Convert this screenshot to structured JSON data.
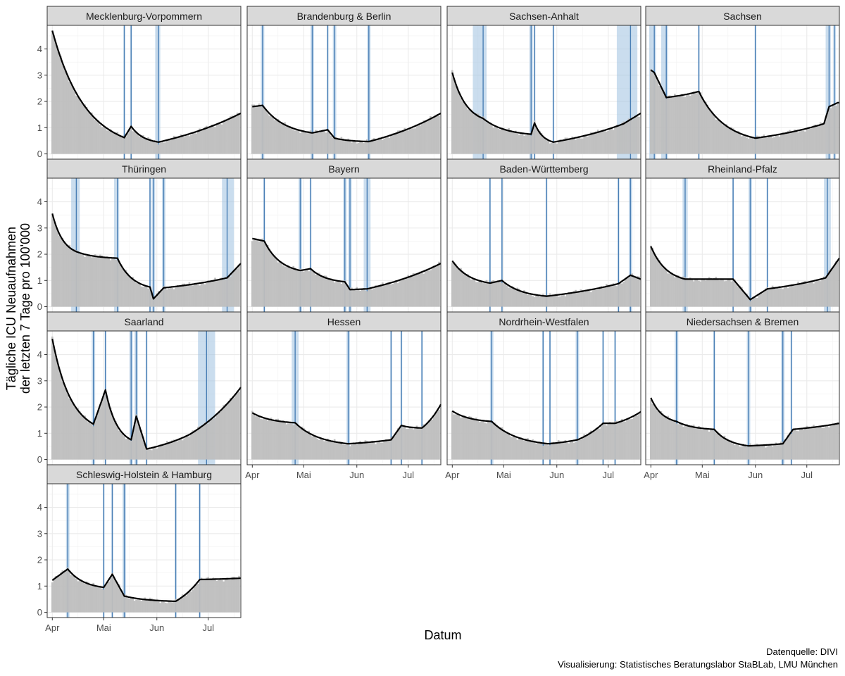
{
  "chart_data": {
    "type": "bar",
    "description_free": true,
    "xlabel": "Datum",
    "ylabel_line1": "Tägliche ICU Neuaufnahmen",
    "ylabel_line2": "der letzten 7 Tage pro 100'000",
    "caption_line1": "Datenquelle: DIVI",
    "caption_line2": "Visualisierung: Statistisches Beratungslabor StaBLab, LMU München",
    "x_range_days": [
      -3,
      110
    ],
    "x_day0": "2020-04-01",
    "x_ticks": [
      {
        "day": 0,
        "label": "Apr"
      },
      {
        "day": 30,
        "label": "Mai"
      },
      {
        "day": 61,
        "label": "Jun"
      },
      {
        "day": 91,
        "label": "Jul"
      }
    ],
    "ylim": [
      -0.2,
      4.9
    ],
    "y_ticks": [
      0,
      1,
      2,
      3,
      4
    ],
    "colors": {
      "bars": "#bebebe",
      "trend": "#000000",
      "breakpoint_line": "#4a7fb5",
      "breakpoint_band": "#9ec1e0",
      "strip_bg": "#d9d9d9",
      "grid": "#ebebeb"
    },
    "panels": [
      {
        "name": "Mecklenburg-Vorpommern",
        "trend_days": [
          0,
          42,
          46,
          62,
          110
        ],
        "trend_values": [
          4.7,
          0.62,
          1.05,
          0.45,
          1.55
        ],
        "breakpoints": [
          {
            "day": 42,
            "lo": 41.5,
            "hi": 42.5
          },
          {
            "day": 46,
            "lo": 45.5,
            "hi": 46.5
          },
          {
            "day": 62,
            "lo": 60,
            "hi": 63
          }
        ]
      },
      {
        "name": "Brandenburg & Berlin",
        "trend_days": [
          0,
          6,
          35,
          44,
          48,
          68,
          110
        ],
        "trend_values": [
          1.8,
          1.85,
          0.8,
          0.92,
          0.6,
          0.47,
          1.55
        ],
        "breakpoints": [
          {
            "day": 6,
            "lo": 5,
            "hi": 7
          },
          {
            "day": 35,
            "lo": 34,
            "hi": 36
          },
          {
            "day": 44,
            "lo": 43.5,
            "hi": 44.5
          },
          {
            "day": 48,
            "lo": 47,
            "hi": 49
          },
          {
            "day": 68,
            "lo": 67,
            "hi": 69
          }
        ]
      },
      {
        "name": "Sachsen-Anhalt",
        "trend_days": [
          0,
          18,
          46,
          48,
          59,
          100,
          110
        ],
        "trend_values": [
          3.1,
          1.35,
          0.75,
          1.18,
          0.45,
          1.15,
          1.55
        ],
        "breakpoints": [
          {
            "day": 18,
            "lo": 12,
            "hi": 20
          },
          {
            "day": 46,
            "lo": 45,
            "hi": 47
          },
          {
            "day": 48,
            "lo": 47.5,
            "hi": 48.5
          },
          {
            "day": 59,
            "lo": 58.5,
            "hi": 59.5
          },
          {
            "day": 104,
            "lo": 96,
            "hi": 108
          }
        ]
      },
      {
        "name": "Sachsen",
        "trend_days": [
          0,
          2,
          9,
          28,
          61,
          101,
          104,
          109
        ],
        "trend_values": [
          3.2,
          3.1,
          2.15,
          2.38,
          0.6,
          1.15,
          1.8,
          1.95
        ],
        "breakpoints": [
          {
            "day": 2,
            "lo": -1,
            "hi": 3
          },
          {
            "day": 9,
            "lo": 6,
            "hi": 10
          },
          {
            "day": 28,
            "lo": 27.5,
            "hi": 28.5
          },
          {
            "day": 61,
            "lo": 60.5,
            "hi": 61.5
          },
          {
            "day": 104,
            "lo": 102,
            "hi": 105
          },
          {
            "day": 107,
            "lo": 106.5,
            "hi": 108
          }
        ]
      },
      {
        "name": "Thüringen",
        "trend_days": [
          0,
          14,
          38,
          57,
          59,
          65,
          102,
          110
        ],
        "trend_values": [
          3.55,
          2.1,
          1.85,
          0.75,
          0.3,
          0.72,
          1.1,
          1.65
        ],
        "breakpoints": [
          {
            "day": 14,
            "lo": 11,
            "hi": 16
          },
          {
            "day": 38,
            "lo": 36,
            "hi": 39
          },
          {
            "day": 57,
            "lo": 56.5,
            "hi": 57.5
          },
          {
            "day": 59,
            "lo": 58,
            "hi": 60
          },
          {
            "day": 65,
            "lo": 64,
            "hi": 66
          },
          {
            "day": 102,
            "lo": 99,
            "hi": 106
          }
        ]
      },
      {
        "name": "Bayern",
        "trend_days": [
          0,
          7,
          28,
          34,
          54,
          57,
          67,
          110
        ],
        "trend_values": [
          2.6,
          2.5,
          1.38,
          1.45,
          0.95,
          0.65,
          0.68,
          1.65
        ],
        "breakpoints": [
          {
            "day": 7,
            "lo": 6.5,
            "hi": 7.5
          },
          {
            "day": 28,
            "lo": 27,
            "hi": 29
          },
          {
            "day": 34,
            "lo": 33.5,
            "hi": 34.5
          },
          {
            "day": 54,
            "lo": 53,
            "hi": 55
          },
          {
            "day": 57,
            "lo": 56,
            "hi": 58
          },
          {
            "day": 67,
            "lo": 65,
            "hi": 69
          }
        ]
      },
      {
        "name": "Baden-Württemberg",
        "trend_days": [
          0,
          22,
          29,
          55,
          97,
          104,
          110
        ],
        "trend_values": [
          1.75,
          0.9,
          1.0,
          0.4,
          0.88,
          1.2,
          1.05
        ],
        "breakpoints": [
          {
            "day": 22,
            "lo": 21.5,
            "hi": 22.5
          },
          {
            "day": 29,
            "lo": 28.5,
            "hi": 29.5
          },
          {
            "day": 55,
            "lo": 54.5,
            "hi": 55.5
          },
          {
            "day": 97,
            "lo": 96.5,
            "hi": 97.5
          },
          {
            "day": 104,
            "lo": 103,
            "hi": 105
          }
        ]
      },
      {
        "name": "Rheinland-Pfalz",
        "trend_days": [
          0,
          20,
          48,
          58,
          68,
          102,
          110
        ],
        "trend_values": [
          2.3,
          1.05,
          1.05,
          0.27,
          0.68,
          1.1,
          1.85
        ],
        "breakpoints": [
          {
            "day": 20,
            "lo": 18.5,
            "hi": 21.5
          },
          {
            "day": 48,
            "lo": 47.5,
            "hi": 48.5
          },
          {
            "day": 58,
            "lo": 57,
            "hi": 59
          },
          {
            "day": 68,
            "lo": 67.5,
            "hi": 68.5
          },
          {
            "day": 103,
            "lo": 101,
            "hi": 105
          }
        ]
      },
      {
        "name": "Saarland",
        "trend_days": [
          0,
          24,
          31,
          46,
          49,
          55,
          80,
          110
        ],
        "trend_values": [
          4.6,
          1.35,
          2.65,
          0.75,
          1.65,
          0.4,
          0.95,
          2.75
        ],
        "breakpoints": [
          {
            "day": 24,
            "lo": 23,
            "hi": 25
          },
          {
            "day": 31,
            "lo": 30.5,
            "hi": 31.5
          },
          {
            "day": 46,
            "lo": 45,
            "hi": 47
          },
          {
            "day": 49,
            "lo": 48,
            "hi": 50
          },
          {
            "day": 55,
            "lo": 54.5,
            "hi": 55.5
          },
          {
            "day": 90,
            "lo": 85,
            "hi": 95
          }
        ]
      },
      {
        "name": "Hessen",
        "trend_days": [
          0,
          25,
          56,
          81,
          87,
          99,
          110
        ],
        "trend_values": [
          1.78,
          1.4,
          0.6,
          0.75,
          1.3,
          1.2,
          2.1
        ],
        "breakpoints": [
          {
            "day": 25,
            "lo": 23,
            "hi": 27
          },
          {
            "day": 56,
            "lo": 55,
            "hi": 57
          },
          {
            "day": 81,
            "lo": 80.5,
            "hi": 81.5
          },
          {
            "day": 87,
            "lo": 86.5,
            "hi": 87.5
          },
          {
            "day": 99,
            "lo": 98.5,
            "hi": 99.5
          }
        ]
      },
      {
        "name": "Nordrhein-Westfalen",
        "trend_days": [
          0,
          23,
          56,
          73,
          88,
          95,
          110
        ],
        "trend_values": [
          1.85,
          1.45,
          0.6,
          0.75,
          1.38,
          1.38,
          1.82
        ],
        "breakpoints": [
          {
            "day": 23,
            "lo": 22,
            "hi": 24
          },
          {
            "day": 53,
            "lo": 52.5,
            "hi": 53.5
          },
          {
            "day": 57,
            "lo": 56.5,
            "hi": 57.5
          },
          {
            "day": 73,
            "lo": 72,
            "hi": 74
          },
          {
            "day": 88,
            "lo": 87.5,
            "hi": 88.5
          },
          {
            "day": 95,
            "lo": 94.5,
            "hi": 95.5
          }
        ]
      },
      {
        "name": "Niedersachsen & Bremen",
        "trend_days": [
          0,
          15,
          37,
          57,
          77,
          83,
          110
        ],
        "trend_values": [
          2.35,
          1.45,
          1.15,
          0.52,
          0.6,
          1.15,
          1.38
        ],
        "breakpoints": [
          {
            "day": 15,
            "lo": 14,
            "hi": 16
          },
          {
            "day": 37,
            "lo": 36.5,
            "hi": 37.5
          },
          {
            "day": 57,
            "lo": 56,
            "hi": 58
          },
          {
            "day": 77,
            "lo": 76,
            "hi": 78
          },
          {
            "day": 82,
            "lo": 81.5,
            "hi": 82.5
          }
        ]
      },
      {
        "name": "Schleswig-Holstein & Hamburg",
        "trend_days": [
          0,
          9,
          30,
          35,
          42,
          72,
          86,
          110
        ],
        "trend_values": [
          1.22,
          1.65,
          0.95,
          1.45,
          0.62,
          0.42,
          1.25,
          1.3
        ],
        "breakpoints": [
          {
            "day": 9,
            "lo": 8,
            "hi": 10
          },
          {
            "day": 30,
            "lo": 29.5,
            "hi": 30.5
          },
          {
            "day": 35,
            "lo": 34.5,
            "hi": 35.5
          },
          {
            "day": 42,
            "lo": 41,
            "hi": 43
          },
          {
            "day": 72,
            "lo": 71.5,
            "hi": 72.5
          },
          {
            "day": 86,
            "lo": 85.5,
            "hi": 86.5
          }
        ]
      }
    ]
  }
}
